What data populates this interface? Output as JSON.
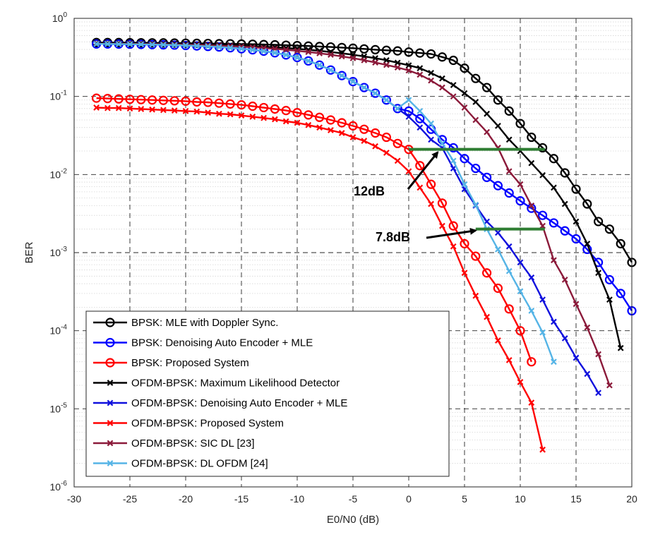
{
  "chart_data": {
    "type": "line",
    "x_axis": {
      "label": "E0/N0 (dB)",
      "range": [
        -30,
        20
      ],
      "ticks": [
        -30,
        -25,
        -20,
        -15,
        -10,
        -5,
        0,
        5,
        10,
        15,
        20
      ]
    },
    "y_axis": {
      "label": "BER",
      "scale": "log",
      "range": [
        1e-06,
        1
      ],
      "tick_exponents": [
        0,
        -1,
        -2,
        -3,
        -4,
        -5,
        -6
      ]
    },
    "grid": true,
    "legend_position": "bottom-left",
    "series": [
      {
        "name": "BPSK: MLE with Doppler Sync.",
        "color": "#000000",
        "marker": "circle",
        "x": [
          -28,
          -27,
          -26,
          -25,
          -24,
          -23,
          -22,
          -21,
          -20,
          -19,
          -18,
          -17,
          -16,
          -15,
          -14,
          -13,
          -12,
          -11,
          -10,
          -9,
          -8,
          -7,
          -6,
          -5,
          -4,
          -3,
          -2,
          -1,
          0,
          1,
          2,
          3,
          4,
          5,
          6,
          7,
          8,
          9,
          10,
          11,
          12,
          13,
          14,
          15,
          16,
          17,
          18,
          19,
          20
        ],
        "y": [
          0.49,
          0.49,
          0.49,
          0.488,
          0.487,
          0.486,
          0.485,
          0.483,
          0.481,
          0.479,
          0.477,
          0.474,
          0.472,
          0.469,
          0.466,
          0.462,
          0.458,
          0.453,
          0.448,
          0.442,
          0.436,
          0.43,
          0.423,
          0.415,
          0.406,
          0.397,
          0.39,
          0.383,
          0.37,
          0.36,
          0.35,
          0.32,
          0.29,
          0.23,
          0.17,
          0.13,
          0.09,
          0.065,
          0.045,
          0.03,
          0.022,
          0.016,
          0.0105,
          0.0065,
          0.0042,
          0.0025,
          0.002,
          0.0013,
          0.00075
        ]
      },
      {
        "name": "BPSK: Denoising Auto Encoder + MLE",
        "color": "#0000ff",
        "marker": "circle",
        "x": [
          -28,
          -27,
          -26,
          -25,
          -24,
          -23,
          -22,
          -21,
          -20,
          -19,
          -18,
          -17,
          -16,
          -15,
          -14,
          -13,
          -12,
          -11,
          -10,
          -9,
          -8,
          -7,
          -6,
          -5,
          -4,
          -3,
          -2,
          -1,
          0,
          1,
          2,
          3,
          4,
          5,
          6,
          7,
          8,
          9,
          10,
          11,
          12,
          13,
          14,
          15,
          16,
          17,
          18,
          19,
          20
        ],
        "y": [
          0.47,
          0.47,
          0.468,
          0.466,
          0.464,
          0.461,
          0.458,
          0.454,
          0.449,
          0.443,
          0.437,
          0.43,
          0.42,
          0.408,
          0.395,
          0.38,
          0.362,
          0.34,
          0.315,
          0.285,
          0.252,
          0.218,
          0.185,
          0.155,
          0.13,
          0.11,
          0.09,
          0.07,
          0.065,
          0.052,
          0.038,
          0.028,
          0.022,
          0.016,
          0.012,
          0.0092,
          0.0072,
          0.0058,
          0.0046,
          0.0037,
          0.003,
          0.0024,
          0.0019,
          0.0015,
          0.0011,
          0.00075,
          0.00045,
          0.0003,
          0.00018
        ]
      },
      {
        "name": "BPSK: Proposed System",
        "color": "#ff0000",
        "marker": "circle",
        "x": [
          -28,
          -27,
          -26,
          -25,
          -24,
          -23,
          -22,
          -21,
          -20,
          -19,
          -18,
          -17,
          -16,
          -15,
          -14,
          -13,
          -12,
          -11,
          -10,
          -9,
          -8,
          -7,
          -6,
          -5,
          -4,
          -3,
          -2,
          -1,
          0,
          1,
          2,
          3,
          4,
          5,
          6,
          7,
          8,
          9,
          10,
          11
        ],
        "y": [
          0.095,
          0.094,
          0.093,
          0.092,
          0.091,
          0.09,
          0.089,
          0.088,
          0.087,
          0.085,
          0.084,
          0.082,
          0.08,
          0.078,
          0.075,
          0.072,
          0.069,
          0.066,
          0.062,
          0.058,
          0.054,
          0.05,
          0.046,
          0.042,
          0.038,
          0.034,
          0.03,
          0.025,
          0.021,
          0.013,
          0.0075,
          0.0043,
          0.0022,
          0.0013,
          0.0009,
          0.00055,
          0.00035,
          0.00019,
          0.0001,
          4e-05
        ]
      },
      {
        "name": "OFDM-BPSK: Maximum Likelihood Detector",
        "color": "#000000",
        "marker": "x",
        "x": [
          -28,
          -27,
          -26,
          -25,
          -24,
          -23,
          -22,
          -21,
          -20,
          -19,
          -18,
          -17,
          -16,
          -15,
          -14,
          -13,
          -12,
          -11,
          -10,
          -9,
          -8,
          -7,
          -6,
          -5,
          -4,
          -3,
          -2,
          -1,
          0,
          1,
          2,
          3,
          4,
          5,
          6,
          7,
          8,
          9,
          10,
          11,
          12,
          13,
          14,
          15,
          16,
          17,
          18,
          19
        ],
        "y": [
          0.48,
          0.48,
          0.479,
          0.478,
          0.477,
          0.475,
          0.473,
          0.471,
          0.468,
          0.465,
          0.461,
          0.457,
          0.452,
          0.447,
          0.441,
          0.434,
          0.426,
          0.417,
          0.407,
          0.396,
          0.384,
          0.371,
          0.357,
          0.342,
          0.326,
          0.309,
          0.291,
          0.27,
          0.25,
          0.23,
          0.2,
          0.17,
          0.14,
          0.11,
          0.085,
          0.06,
          0.042,
          0.028,
          0.02,
          0.014,
          0.0098,
          0.0068,
          0.0042,
          0.0025,
          0.0013,
          0.00055,
          0.00025,
          6e-05
        ]
      },
      {
        "name": "OFDM-BPSK: Denoising Auto Encoder + MLE",
        "color": "#1010dd",
        "marker": "x",
        "x": [
          -28,
          -27,
          -26,
          -25,
          -24,
          -23,
          -22,
          -21,
          -20,
          -19,
          -18,
          -17,
          -16,
          -15,
          -14,
          -13,
          -12,
          -11,
          -10,
          -9,
          -8,
          -7,
          -6,
          -5,
          -4,
          -3,
          -2,
          -1,
          0,
          1,
          2,
          3,
          4,
          5,
          6,
          7,
          8,
          9,
          10,
          11,
          12,
          13,
          14,
          15,
          16,
          17
        ],
        "y": [
          0.47,
          0.47,
          0.468,
          0.466,
          0.464,
          0.461,
          0.458,
          0.454,
          0.449,
          0.443,
          0.437,
          0.43,
          0.42,
          0.408,
          0.395,
          0.38,
          0.362,
          0.34,
          0.315,
          0.285,
          0.252,
          0.218,
          0.185,
          0.155,
          0.13,
          0.11,
          0.09,
          0.07,
          0.055,
          0.04,
          0.028,
          0.022,
          0.012,
          0.0065,
          0.004,
          0.0025,
          0.0018,
          0.0012,
          0.00075,
          0.00048,
          0.00025,
          0.00013,
          8e-05,
          4.5e-05,
          2.8e-05,
          1.6e-05
        ]
      },
      {
        "name": "OFDM-BPSK: Proposed System",
        "color": "#ff0000",
        "marker": "x",
        "x": [
          -28,
          -27,
          -26,
          -25,
          -24,
          -23,
          -22,
          -21,
          -20,
          -19,
          -18,
          -17,
          -16,
          -15,
          -14,
          -13,
          -12,
          -11,
          -10,
          -9,
          -8,
          -7,
          -6,
          -5,
          -4,
          -3,
          -2,
          -1,
          0,
          1,
          2,
          3,
          4,
          5,
          6,
          7,
          8,
          9,
          10,
          11,
          12
        ],
        "y": [
          0.072,
          0.071,
          0.071,
          0.07,
          0.069,
          0.068,
          0.067,
          0.066,
          0.065,
          0.064,
          0.062,
          0.06,
          0.059,
          0.057,
          0.055,
          0.053,
          0.051,
          0.048,
          0.046,
          0.043,
          0.04,
          0.037,
          0.034,
          0.03,
          0.027,
          0.023,
          0.019,
          0.015,
          0.011,
          0.0068,
          0.0042,
          0.0022,
          0.0012,
          0.00055,
          0.00028,
          0.00015,
          7.5e-05,
          4.2e-05,
          2.2e-05,
          1.2e-05,
          3e-06
        ]
      },
      {
        "name": "OFDM-BPSK: SIC DL [23]",
        "color": "#8b1a3a",
        "marker": "x",
        "x": [
          -28,
          -27,
          -26,
          -25,
          -24,
          -23,
          -22,
          -21,
          -20,
          -19,
          -18,
          -17,
          -16,
          -15,
          -14,
          -13,
          -12,
          -11,
          -10,
          -9,
          -8,
          -7,
          -6,
          -5,
          -4,
          -3,
          -2,
          -1,
          0,
          1,
          2,
          3,
          4,
          5,
          6,
          7,
          8,
          9,
          10,
          11,
          12,
          13,
          14,
          15,
          16,
          17,
          18
        ],
        "y": [
          0.475,
          0.474,
          0.473,
          0.472,
          0.47,
          0.468,
          0.466,
          0.463,
          0.46,
          0.456,
          0.452,
          0.447,
          0.441,
          0.434,
          0.426,
          0.417,
          0.407,
          0.396,
          0.384,
          0.371,
          0.357,
          0.342,
          0.326,
          0.309,
          0.291,
          0.272,
          0.253,
          0.235,
          0.215,
          0.19,
          0.16,
          0.13,
          0.1,
          0.072,
          0.05,
          0.035,
          0.022,
          0.011,
          0.0075,
          0.004,
          0.0022,
          0.0008,
          0.00045,
          0.00022,
          0.00011,
          5e-05,
          2e-05
        ]
      },
      {
        "name": "OFDM-BPSK: DL OFDM [24]",
        "color": "#55b4e6",
        "marker": "x",
        "x": [
          -28,
          -27,
          -26,
          -25,
          -24,
          -23,
          -22,
          -21,
          -20,
          -19,
          -18,
          -17,
          -16,
          -15,
          -14,
          -13,
          -12,
          -11,
          -10,
          -9,
          -8,
          -7,
          -6,
          -5,
          -4,
          -3,
          -2,
          -1,
          0,
          1,
          2,
          3,
          4,
          5,
          6,
          7,
          8,
          9,
          10,
          11,
          12,
          13
        ],
        "y": [
          0.47,
          0.47,
          0.468,
          0.466,
          0.464,
          0.461,
          0.458,
          0.454,
          0.449,
          0.443,
          0.437,
          0.43,
          0.42,
          0.408,
          0.395,
          0.38,
          0.362,
          0.34,
          0.315,
          0.285,
          0.252,
          0.218,
          0.185,
          0.155,
          0.13,
          0.11,
          0.09,
          0.07,
          0.09,
          0.065,
          0.045,
          0.025,
          0.015,
          0.0075,
          0.0041,
          0.002,
          0.0011,
          0.00058,
          0.00032,
          0.00018,
          9.5e-05,
          4e-05
        ]
      }
    ],
    "annotations": [
      {
        "text": "12dB",
        "line": {
          "x": [
            0,
            12.2
          ],
          "y": 0.021,
          "color": "#2e7d32"
        },
        "arrow_to": [
          2.6,
          0.021
        ]
      },
      {
        "text": "7.8dB",
        "line": {
          "x": [
            6,
            12.2
          ],
          "y": 0.002,
          "color": "#2e7d32"
        },
        "arrow_to": [
          5.5,
          0.002
        ]
      }
    ]
  }
}
